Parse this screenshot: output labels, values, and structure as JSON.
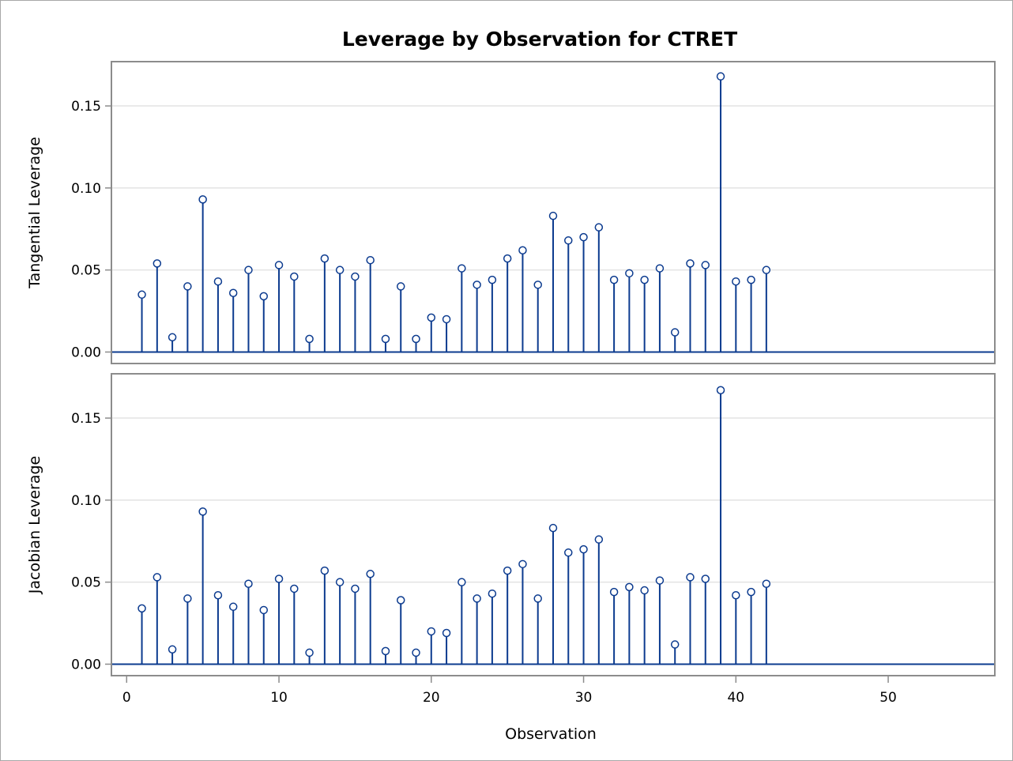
{
  "chart_data": {
    "type": "needle",
    "title": "Leverage by Observation for CTRET",
    "xlabel": "Observation",
    "xlim": [
      -1,
      57
    ],
    "xticks": [
      0,
      10,
      20,
      30,
      40,
      50
    ],
    "xtick_labels": [
      "0",
      "10",
      "20",
      "30",
      "40",
      "50"
    ],
    "grid": true,
    "colors": {
      "series": "#0c3b8f",
      "grid": "#e3e3e3",
      "frame": "#8c8c8c"
    },
    "panels": [
      {
        "name": "tangential",
        "ylabel": "Tangential Leverage",
        "ylim": [
          -0.007,
          0.177
        ],
        "yticks": [
          0.0,
          0.05,
          0.1,
          0.15
        ],
        "ytick_labels": [
          "0.00",
          "0.05",
          "0.10",
          "0.15"
        ],
        "x": [
          1,
          2,
          3,
          4,
          5,
          6,
          7,
          8,
          9,
          10,
          11,
          12,
          13,
          14,
          15,
          16,
          17,
          18,
          19,
          20,
          21,
          22,
          23,
          24,
          25,
          26,
          27,
          28,
          29,
          30,
          31,
          32,
          33,
          34,
          35,
          36,
          37,
          38,
          39,
          40,
          41,
          42
        ],
        "values": [
          0.035,
          0.054,
          0.009,
          0.04,
          0.093,
          0.043,
          0.036,
          0.05,
          0.034,
          0.053,
          0.046,
          0.008,
          0.057,
          0.05,
          0.046,
          0.056,
          0.008,
          0.04,
          0.008,
          0.021,
          0.02,
          0.051,
          0.041,
          0.044,
          0.057,
          0.062,
          0.041,
          0.083,
          0.068,
          0.07,
          0.076,
          0.044,
          0.048,
          0.044,
          0.051,
          0.012,
          0.054,
          0.053,
          0.168,
          0.043,
          0.044,
          0.05
        ]
      },
      {
        "name": "jacobian",
        "ylabel": "Jacobian Leverage",
        "ylim": [
          -0.007,
          0.177
        ],
        "yticks": [
          0.0,
          0.05,
          0.1,
          0.15
        ],
        "ytick_labels": [
          "0.00",
          "0.05",
          "0.10",
          "0.15"
        ],
        "x": [
          1,
          2,
          3,
          4,
          5,
          6,
          7,
          8,
          9,
          10,
          11,
          12,
          13,
          14,
          15,
          16,
          17,
          18,
          19,
          20,
          21,
          22,
          23,
          24,
          25,
          26,
          27,
          28,
          29,
          30,
          31,
          32,
          33,
          34,
          35,
          36,
          37,
          38,
          39,
          40,
          41,
          42
        ],
        "values": [
          0.034,
          0.053,
          0.009,
          0.04,
          0.093,
          0.042,
          0.035,
          0.049,
          0.033,
          0.052,
          0.046,
          0.007,
          0.057,
          0.05,
          0.046,
          0.055,
          0.008,
          0.039,
          0.007,
          0.02,
          0.019,
          0.05,
          0.04,
          0.043,
          0.057,
          0.061,
          0.04,
          0.083,
          0.068,
          0.07,
          0.076,
          0.044,
          0.047,
          0.045,
          0.051,
          0.012,
          0.053,
          0.052,
          0.167,
          0.042,
          0.044,
          0.049
        ]
      }
    ]
  }
}
